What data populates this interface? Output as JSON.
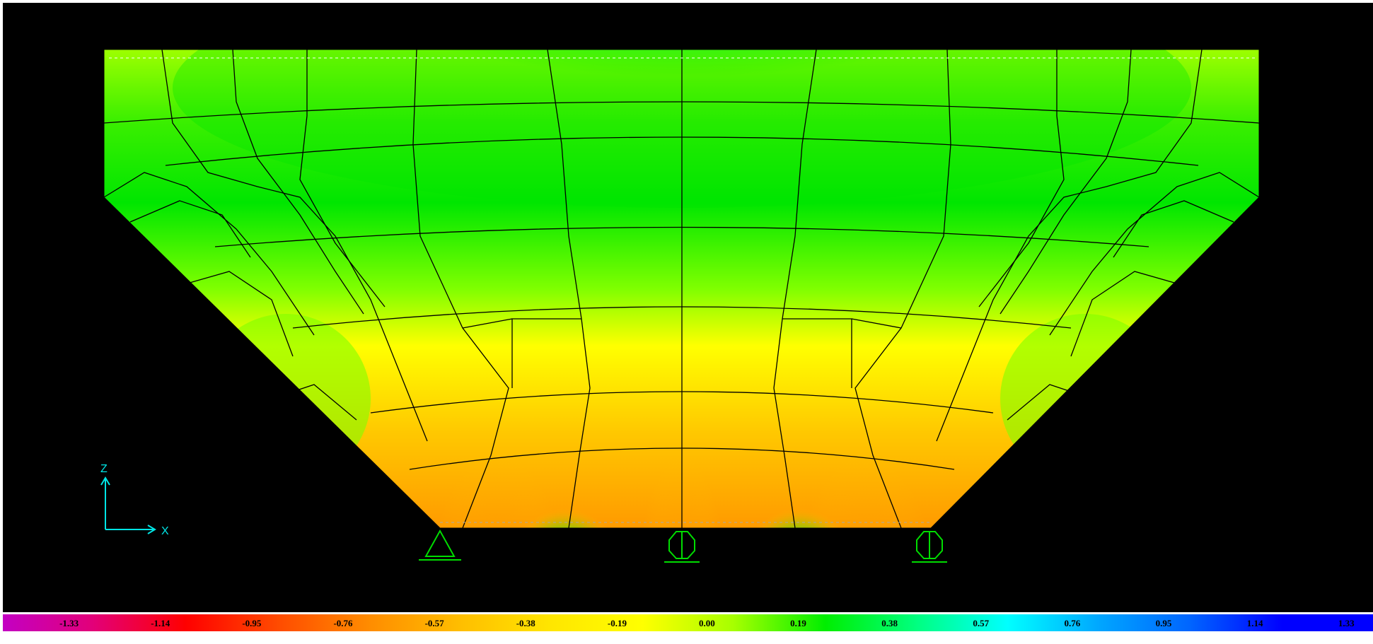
{
  "view": {
    "background": "#000000",
    "axis_color": "#00e5e5",
    "mesh_color": "#000000",
    "support_color": "#00dd00"
  },
  "axes": {
    "vertical_label": "Z",
    "horizontal_label": "X"
  },
  "supports": [
    "pin-support",
    "roller-support",
    "roller-support"
  ],
  "contour_legend": {
    "labels": [
      "-1.33",
      "-1.14",
      "-0.95",
      "-0.76",
      "-0.57",
      "-0.38",
      "-0.19",
      "0.00",
      "0.19",
      "0.38",
      "0.57",
      "0.76",
      "0.95",
      "1.14",
      "1.33"
    ],
    "colors": [
      "#c300c3",
      "#e30077",
      "#ff0000",
      "#ff4a00",
      "#ff8c00",
      "#ffbe00",
      "#ffe600",
      "#ffff00",
      "#a6ff00",
      "#00ee00",
      "#00ff80",
      "#00ffff",
      "#00a6ff",
      "#0064ff",
      "#0000ff"
    ]
  }
}
